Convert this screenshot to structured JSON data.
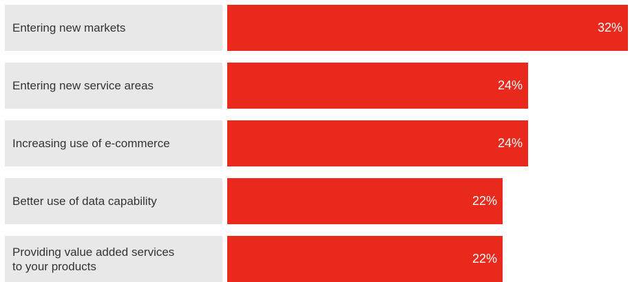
{
  "chart_data": {
    "type": "bar",
    "orientation": "horizontal",
    "categories": [
      "Entering new markets",
      "Entering new service areas",
      "Increasing use of e-commerce",
      "Better use of data capability",
      "Providing value added services\nto your products"
    ],
    "values": [
      32,
      24,
      24,
      22,
      22
    ],
    "value_labels": [
      "32%",
      "24%",
      "24%",
      "22%",
      "22%"
    ],
    "unit": "%",
    "xlim": [
      0,
      32
    ],
    "colors": {
      "bar": "#e8291c",
      "label_background": "#e8e8e8",
      "label_text": "#333333",
      "value_text": "#ffffff"
    },
    "grid": false,
    "legend": "none"
  }
}
